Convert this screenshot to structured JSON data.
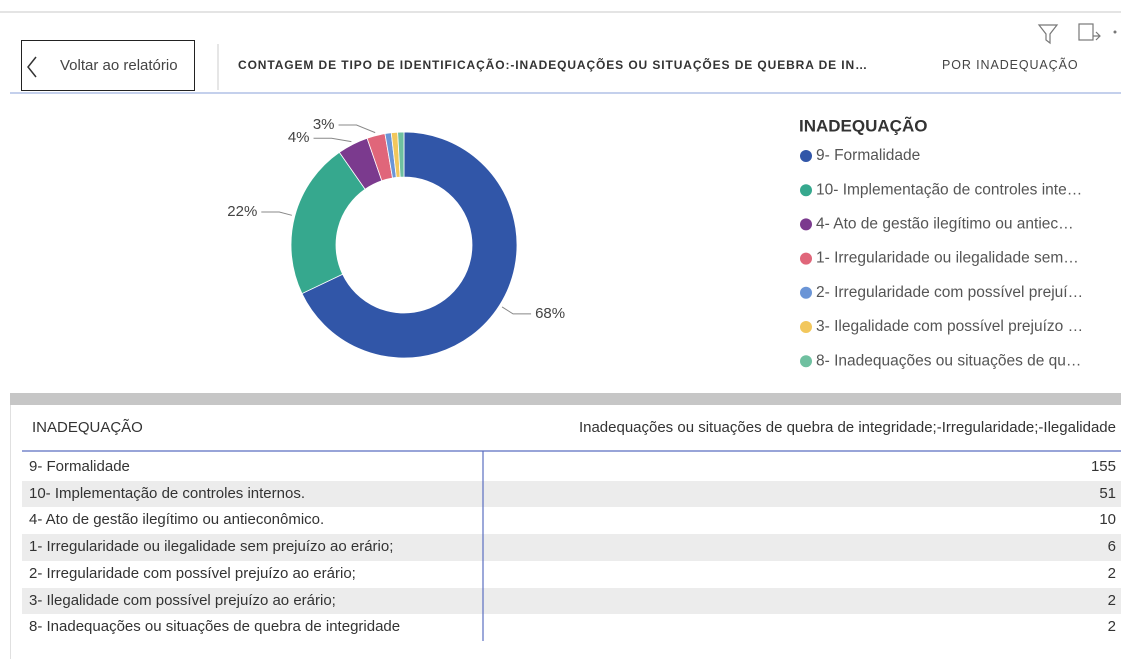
{
  "header": {
    "back_button": "Voltar ao relatório",
    "title": "CONTAGEM DE TIPO DE IDENTIFICAÇÃO:-INADEQUAÇÕES OU SITUAÇÕES DE QUEBRA DE IN…",
    "subtitle": "POR INADEQUAÇÃO"
  },
  "chart_data": {
    "type": "donut",
    "legend_title": "INADEQUAÇÃO",
    "legend_position": "right",
    "categories": [
      "9- Formalidade",
      "10- Implementação de controles inte…",
      "4- Ato de gestão ilegítimo ou antiec…",
      "1-  Irregularidade ou ilegalidade sem…",
      "2- Irregularidade com possível prejuí…",
      "3- Ilegalidade com possível prejuízo …",
      "8- Inadequações ou situações de qu…"
    ],
    "values": [
      68,
      22.4,
      4.4,
      2.6,
      0.9,
      0.9,
      0.9
    ],
    "value_labels": [
      "68%",
      "22%",
      "4%",
      "3%",
      null,
      null,
      null
    ],
    "colors": [
      "#3156a8",
      "#36a88e",
      "#7b3a8e",
      "#e0667a",
      "#6b95d6",
      "#f2c75c",
      "#6fc0a0"
    ]
  },
  "table": {
    "columns": [
      "INADEQUAÇÃO",
      "Inadequações ou situações de quebra de integridade;-Irregularidade;-Ilegalidade"
    ],
    "rows": [
      [
        "9- Formalidade",
        "155"
      ],
      [
        "10- Implementação de controles internos.",
        "51"
      ],
      [
        "4- Ato de gestão ilegítimo ou antieconômico.",
        "10"
      ],
      [
        "1- Irregularidade ou ilegalidade sem prejuízo ao erário;",
        "6"
      ],
      [
        "2- Irregularidade com possível prejuízo ao erário;",
        "2"
      ],
      [
        "3- Ilegalidade com possível prejuízo ao erário;",
        "2"
      ],
      [
        "8- Inadequações ou situações de quebra de integridade",
        "2"
      ]
    ]
  }
}
